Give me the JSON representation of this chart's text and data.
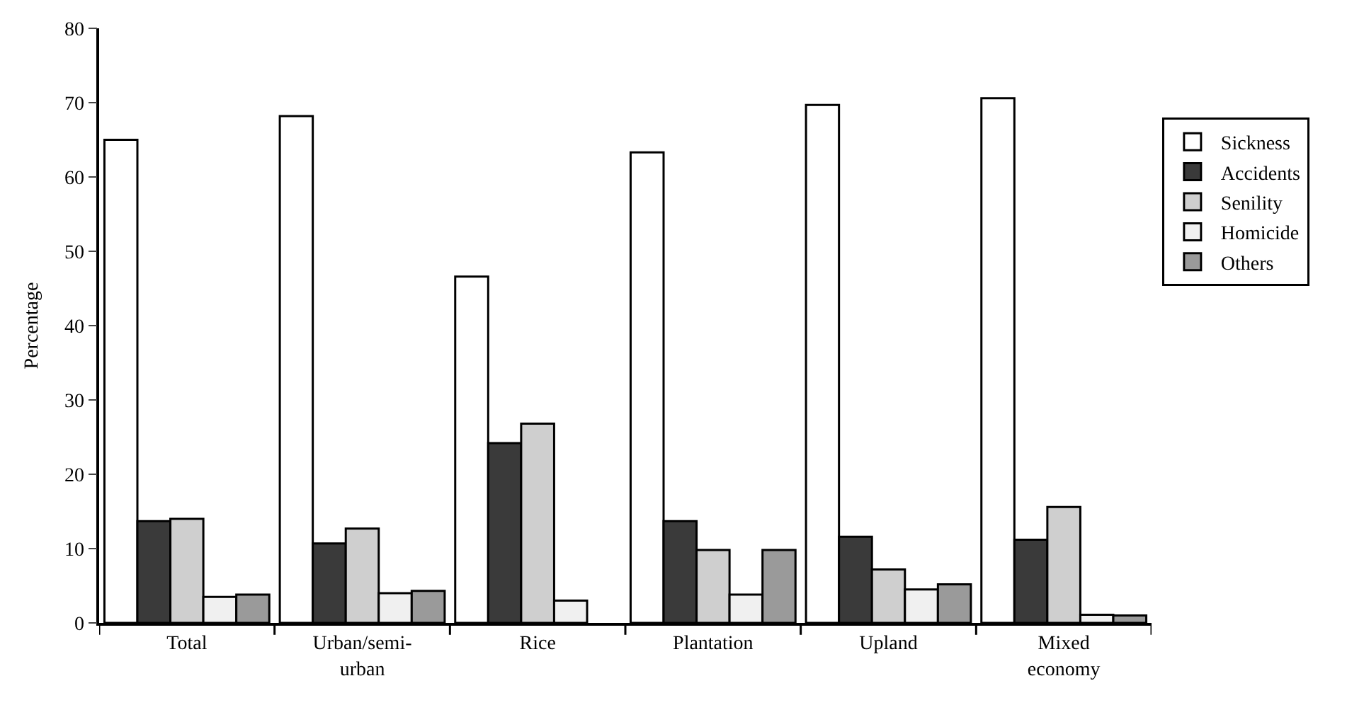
{
  "chart_data": {
    "type": "bar",
    "ylabel": "Percentage",
    "categories": [
      "Total",
      "Urban/semi-urban",
      "Rice",
      "Plantation",
      "Upland",
      "Mixed economy"
    ],
    "series": [
      {
        "name": "Sickness",
        "color": "#ffffff",
        "values": [
          65,
          68.2,
          46.6,
          63.3,
          69.7,
          70.6
        ]
      },
      {
        "name": "Accidents",
        "color": "#3a3a3a",
        "values": [
          13.7,
          10.7,
          24.2,
          13.7,
          11.6,
          11.2
        ]
      },
      {
        "name": "Senility",
        "color": "#cfcfcf",
        "values": [
          14.0,
          12.7,
          26.8,
          9.8,
          7.2,
          15.6
        ]
      },
      {
        "name": "Homicide",
        "color": "#f0f0f0",
        "values": [
          3.5,
          4.0,
          3.0,
          3.8,
          4.5,
          1.1
        ]
      },
      {
        "name": "Others",
        "color": "#9a9a9a",
        "values": [
          3.8,
          4.3,
          null,
          9.8,
          5.2,
          1.0
        ]
      }
    ],
    "ylim": [
      0,
      80
    ],
    "yticks": [
      0,
      10,
      20,
      30,
      40,
      50,
      60,
      70,
      80
    ],
    "legend": "right"
  }
}
